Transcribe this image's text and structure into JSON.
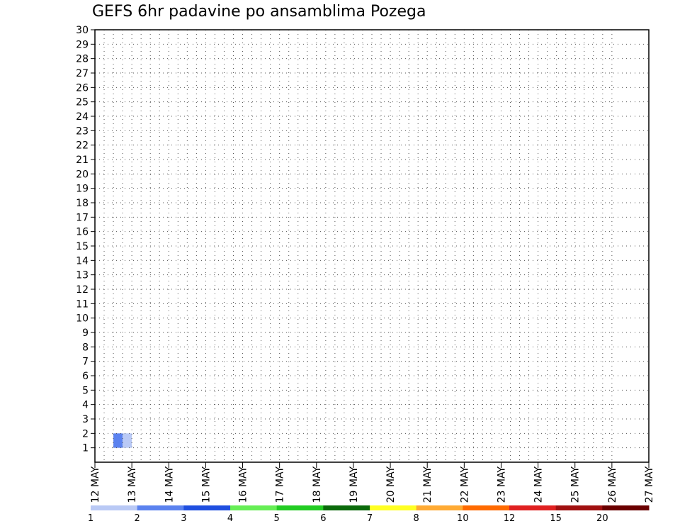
{
  "chart_data": {
    "type": "heatmap",
    "title": "GEFS 6hr padavine po ansamblima Pozega",
    "xlabel": "",
    "ylabel": "",
    "x_ticks": [
      "12 MAY",
      "13 MAY",
      "14 MAY",
      "15 MAY",
      "16 MAY",
      "17 MAY",
      "18 MAY",
      "19 MAY",
      "20 MAY",
      "21 MAY",
      "22 MAY",
      "23 MAY",
      "24 MAY",
      "25 MAY",
      "26 MAY",
      "27 MAY"
    ],
    "y_ticks": [
      "1",
      "2",
      "3",
      "4",
      "5",
      "6",
      "7",
      "8",
      "9",
      "10",
      "11",
      "12",
      "13",
      "14",
      "15",
      "16",
      "17",
      "18",
      "19",
      "20",
      "21",
      "22",
      "23",
      "24",
      "25",
      "26",
      "27",
      "28",
      "29",
      "30"
    ],
    "ylim": [
      0,
      30
    ],
    "grid": true,
    "colorbar": {
      "labels": [
        "1",
        "2",
        "3",
        "4",
        "5",
        "6",
        "7",
        "8",
        "10",
        "12",
        "15",
        "20"
      ],
      "colors": [
        "#b9c9f5",
        "#5b82ef",
        "#1f4fe0",
        "#66ee55",
        "#22cc22",
        "#0a6a0a",
        "#ffff22",
        "#ffaa33",
        "#ff6a00",
        "#e02020",
        "#a01010",
        "#6a0000"
      ]
    },
    "columns_per_day": 4,
    "grid_values": [
      "000000000000000000000000000000000000000000000000000000000000",
      "002100000000000000000000000000000000000000000000000000000000",
      "000000000000000000000000000000000000000000000000000000000000",
      "000000000000000000000000000000000000000000000000000000000000",
      "000000000000000000000000000000000000000000000000000000000000",
      "000000000000000000000000000000000000000000000000000000000000",
      "000000000000000000000000000000000000000000000000000000000000",
      "000000000000000000000000000000000000000000000000000000000000",
      "000000000000000000000000000000000000000000000000000000000000",
      "000000000000000000000000000000000000000000000000000000000000",
      "000000000000000000000000000000000000000000000000000000000000",
      "000000000000000000000000000000000000000000000000000000000000",
      "000000000000000000000000000000000000000000000000000000000000",
      "000000000000000000000000000000000000000000000000000000000000",
      "000000000000000000000000000000000000000000000000000000000000",
      "000000000000000000000000000000000000000000000000000000000000",
      "000000000000000000000000000000000000000000000000000000000000",
      "000000000000000000000000000000000000000000000000000000000000",
      "000000000000000000000000000000000000000000000000000000000000",
      "000000000000000000000000000000000000000000000000000000000000",
      "000000000000000000000000000000000000000000000000000000000000",
      "000000000000000000000000000000000000000000000000000000000000",
      "000000000000000000000000000000000000000000000000000000000000",
      "000000000000000000000000000000000000000000000000000000000000",
      "000000000000000000000000000000000000000000000000000000000000",
      "000000000000000000000000000000000000000000000000000000000000",
      "000000000000000000000000000000000000000000000000000000000000",
      "000000000000000000000000000000000000000000000000000000000000",
      "000000000000000000000000000000000000000000000000000000000000",
      "000000000000000000000000000000000000000000000000000000000000"
    ]
  }
}
